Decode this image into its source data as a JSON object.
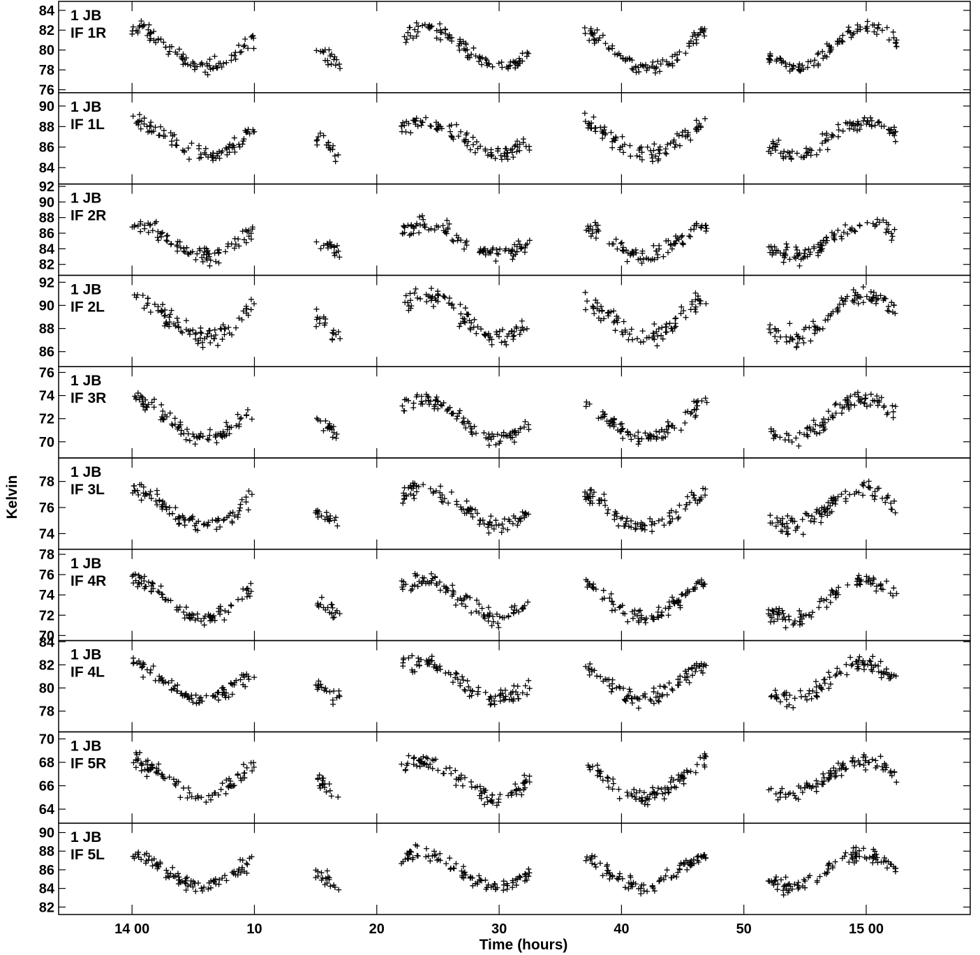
{
  "chart_data": {
    "type": "scatter",
    "marker": "+",
    "xlabel": "Time (hours)",
    "ylabel": "Kelvin",
    "grid": false,
    "x_ticks": [
      {
        "value": 0,
        "label": "14 00"
      },
      {
        "value": 10,
        "label": "10"
      },
      {
        "value": 20,
        "label": "20"
      },
      {
        "value": 30,
        "label": "30"
      },
      {
        "value": 40,
        "label": "40"
      },
      {
        "value": 50,
        "label": "50"
      },
      {
        "value": 60,
        "label": "15 00"
      }
    ],
    "xlim": [
      -6,
      68.5
    ],
    "segments": [
      [
        0,
        10
      ],
      [
        15,
        17
      ],
      [
        22,
        32.5
      ],
      [
        37,
        47
      ],
      [
        52,
        62.5
      ]
    ],
    "panels": [
      {
        "line1": "1 JB",
        "line2": "IF 1R",
        "ylim": [
          75.7,
          84.9
        ],
        "yticks": [
          76,
          78,
          80,
          82,
          84
        ],
        "mean": 80.2,
        "amp": 2.0,
        "noise": 0.55,
        "seed": 11
      },
      {
        "line1": "1 JB",
        "line2": "IF 1L",
        "ylim": [
          82.4,
          91.3
        ],
        "yticks": [
          84,
          86,
          88,
          90
        ],
        "mean": 86.9,
        "amp": 1.6,
        "noise": 0.6,
        "seed": 23
      },
      {
        "line1": "1 JB",
        "line2": "IF 2R",
        "ylim": [
          80.6,
          92.3
        ],
        "yticks": [
          82,
          84,
          86,
          88,
          90,
          92
        ],
        "mean": 85.2,
        "amp": 2.0,
        "noise": 0.8,
        "seed": 37
      },
      {
        "line1": "1 JB",
        "line2": "IF 2L",
        "ylim": [
          84.7,
          92.6
        ],
        "yticks": [
          86,
          88,
          90,
          92
        ],
        "mean": 89.0,
        "amp": 1.8,
        "noise": 0.6,
        "seed": 41
      },
      {
        "line1": "1 JB",
        "line2": "IF 3R",
        "ylim": [
          68.6,
          76.5
        ],
        "yticks": [
          70,
          72,
          74,
          76
        ],
        "mean": 72.0,
        "amp": 1.7,
        "noise": 0.5,
        "seed": 53
      },
      {
        "line1": "1 JB",
        "line2": "IF 3L",
        "ylim": [
          72.8,
          79.8
        ],
        "yticks": [
          74,
          76,
          78
        ],
        "mean": 76.0,
        "amp": 1.4,
        "noise": 0.45,
        "seed": 67
      },
      {
        "line1": "1 JB",
        "line2": "IF 4R",
        "ylim": [
          69.5,
          78.5
        ],
        "yticks": [
          70,
          72,
          74,
          76,
          78
        ],
        "mean": 73.6,
        "amp": 1.9,
        "noise": 0.55,
        "seed": 71
      },
      {
        "line1": "1 JB",
        "line2": "IF 4L",
        "ylim": [
          76.2,
          84.1
        ],
        "yticks": [
          78,
          80,
          82,
          84
        ],
        "mean": 80.6,
        "amp": 1.6,
        "noise": 0.5,
        "seed": 83
      },
      {
        "line1": "1 JB",
        "line2": "IF 5R",
        "ylim": [
          62.8,
          70.6
        ],
        "yticks": [
          64,
          66,
          68,
          70
        ],
        "mean": 66.6,
        "amp": 1.6,
        "noise": 0.5,
        "seed": 97
      },
      {
        "line1": "1 JB",
        "line2": "IF 5L",
        "ylim": [
          81.2,
          91.0
        ],
        "yticks": [
          82,
          84,
          86,
          88,
          90
        ],
        "mean": 86.0,
        "amp": 1.8,
        "noise": 0.55,
        "seed": 101
      }
    ]
  }
}
